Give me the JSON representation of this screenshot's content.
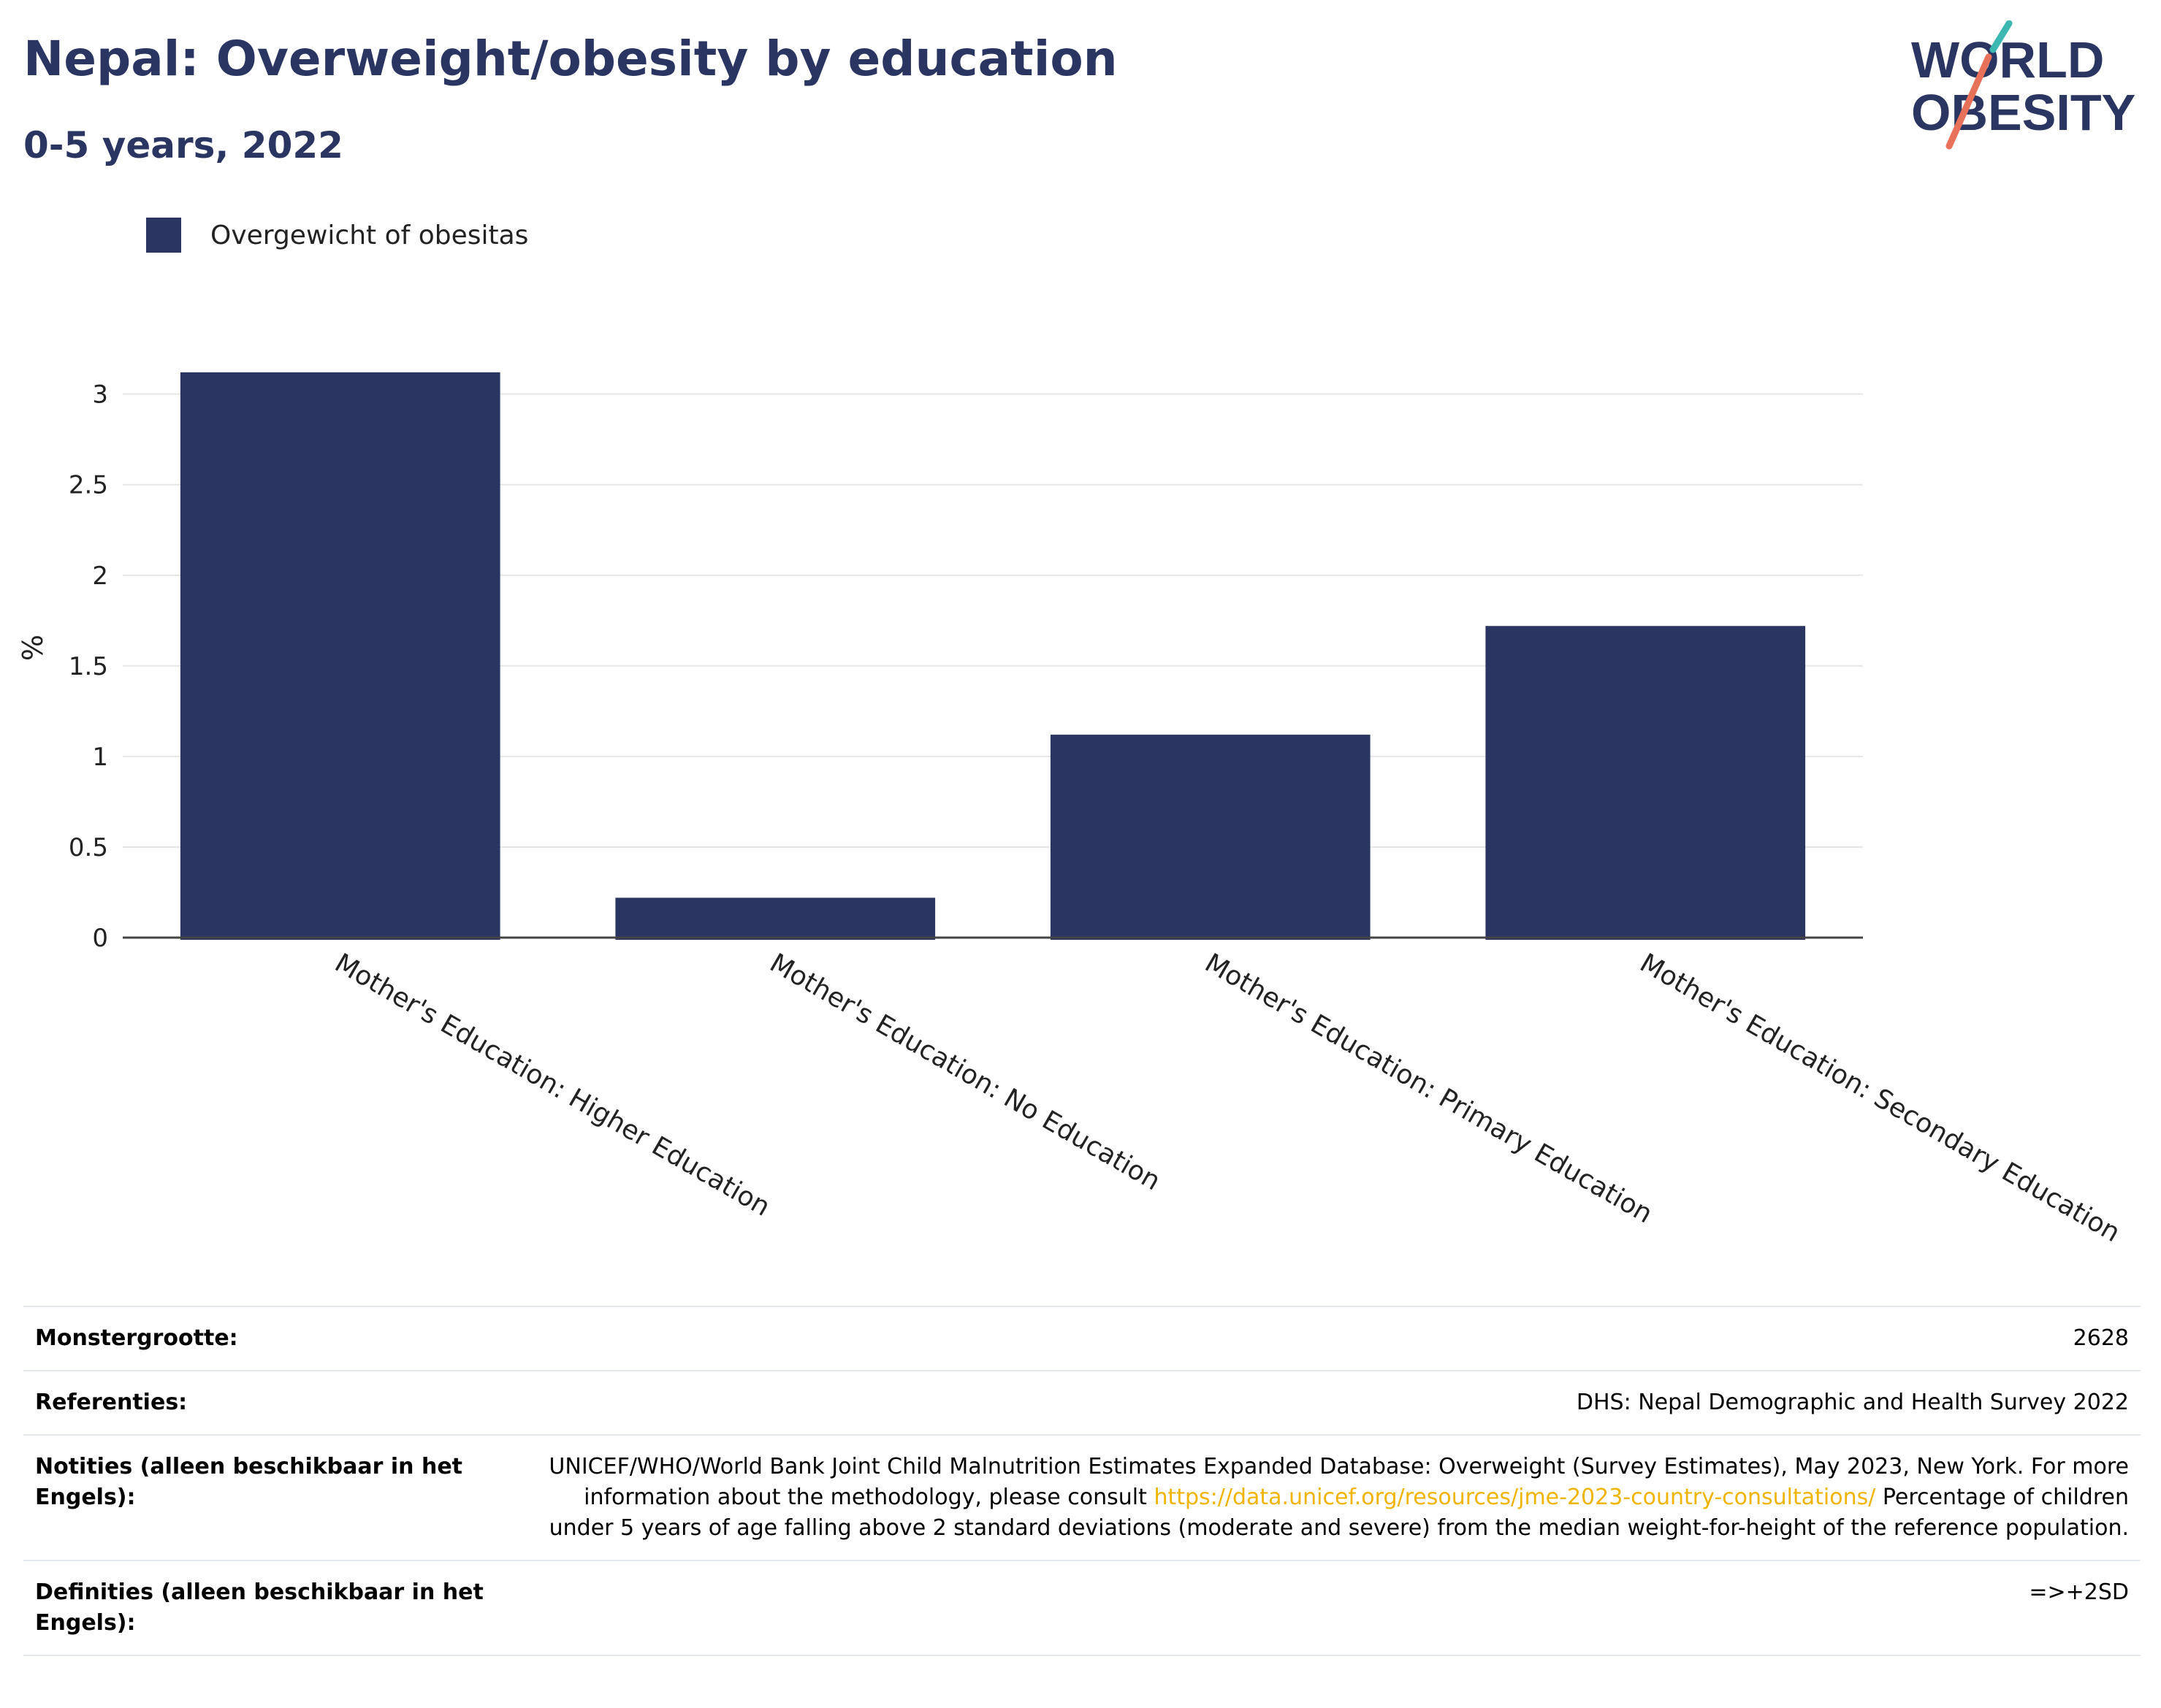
{
  "header": {
    "title": "Nepal: Overweight/obesity by education",
    "subtitle": "0-5 years, 2022"
  },
  "logo": {
    "line1": "WORLD",
    "line2": "OBESITY",
    "colors": [
      "#2a3562",
      "#e8715a",
      "#3cb7b2"
    ]
  },
  "colors": {
    "bar": "#2a3562",
    "title": "#2a3562",
    "grid": "#e6e6e6",
    "link": "#f0b400"
  },
  "chart_data": {
    "type": "bar",
    "categories": [
      "Mother's Education: Higher Education",
      "Mother's Education: No Education",
      "Mother's Education: Primary Education",
      "Mother's Education: Secondary Education"
    ],
    "series": [
      {
        "name": "Overgewicht of obesitas",
        "values": [
          3.12,
          0.22,
          1.12,
          1.72
        ]
      }
    ],
    "ylabel": "%",
    "ylim": [
      0,
      3.2
    ],
    "yticks": [
      "0",
      "0.5",
      "1",
      "1.5",
      "2",
      "2.5",
      "3"
    ],
    "grid": true,
    "legend": "top-left"
  },
  "info": {
    "rows": [
      {
        "key": "Monstergrootte:",
        "value": "2628"
      },
      {
        "key": "Referenties:",
        "value": "DHS: Nepal Demographic and Health Survey 2022"
      },
      {
        "key": "Notities (alleen beschikbaar in het Engels):",
        "value_before": "UNICEF/WHO/World Bank Joint Child Malnutrition Estimates Expanded Database: Overweight (Survey Estimates), May 2023, New York. For more information about the methodology, please consult ",
        "link": "https://data.unicef.org/resources/jme-2023-country-consultations/",
        "value_after": " Percentage of children under 5 years of age falling above 2 standard deviations (moderate and severe) from the median weight-for-height of the reference population."
      },
      {
        "key": "Definities (alleen beschikbaar in het Engels):",
        "value": "=>+2SD"
      }
    ]
  }
}
